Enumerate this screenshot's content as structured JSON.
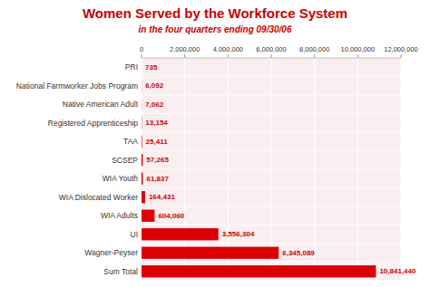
{
  "chart_data": {
    "type": "bar",
    "orientation": "horizontal",
    "title": "Women Served by the Workforce System",
    "subtitle": "in the four quarters ending 09/30/06",
    "categories": [
      "Sum Total",
      "Wagner-Peyser",
      "UI",
      "WIA Adults",
      "WIA Dislocated Worker",
      "WIA Youth",
      "SCSEP",
      "TAA",
      "Registered Apprenticeship",
      "Native American Adult",
      "National Farmworker Jobs Program",
      "PRI"
    ],
    "values": [
      10841440,
      6345089,
      3556304,
      604060,
      164431,
      61837,
      57265,
      25411,
      13154,
      7062,
      6092,
      735
    ],
    "value_labels": [
      "10,841,440",
      "6,345,089",
      "3,556,304",
      "604,060",
      "164,431",
      "61,837",
      "57,265",
      "25,411",
      "13,154",
      "7,062",
      "6,092",
      "735"
    ],
    "data_labels": true,
    "color": "#dd0000",
    "xlim": [
      0,
      12000000
    ],
    "xticks": [
      0,
      {
        "value": 2000000,
        "label": "2,000,000"
      },
      {
        "value": 4000000,
        "label": "4,000,000"
      },
      {
        "value": 6000000,
        "label": "6,000,000"
      },
      {
        "value": 8000000,
        "label": "8,000,000"
      },
      {
        "value": 10000000,
        "label": "10,000,000"
      },
      {
        "value": 12000000,
        "label": "12,000,000"
      }
    ],
    "grid": true
  }
}
